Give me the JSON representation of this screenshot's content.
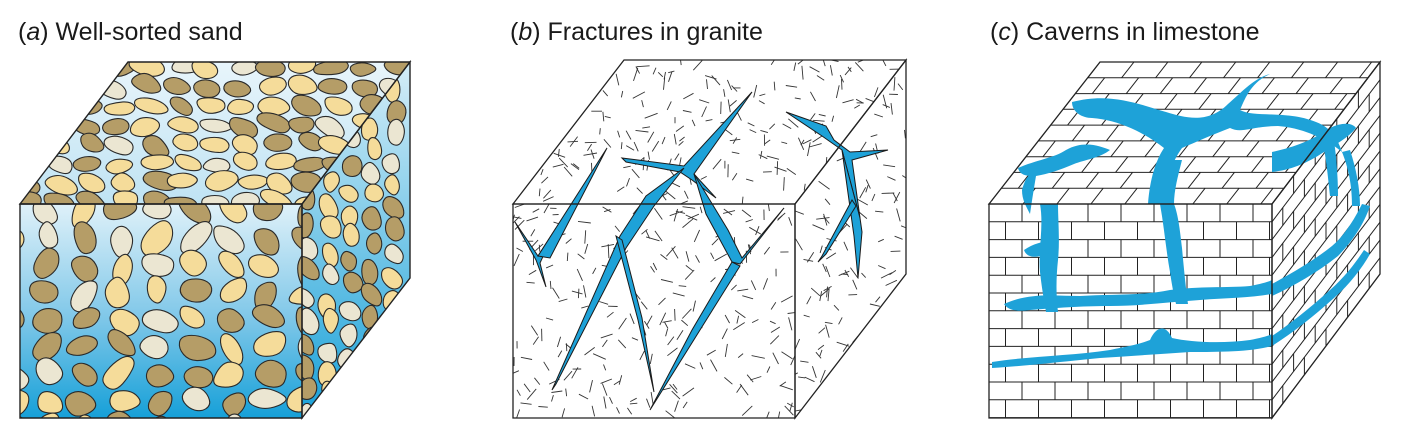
{
  "panels": [
    {
      "letter": "a",
      "title": "Well-sorted sand"
    },
    {
      "letter": "b",
      "title": "Fractures in granite"
    },
    {
      "letter": "c",
      "title": "Caverns in limestone"
    }
  ],
  "colors": {
    "water": "#1ea2d8",
    "water_light": "#d4edf7",
    "grain_tan": "#f5dc9a",
    "grain_khaki": "#b59d67",
    "grain_cream": "#ebe6d2",
    "outline": "#222222"
  }
}
